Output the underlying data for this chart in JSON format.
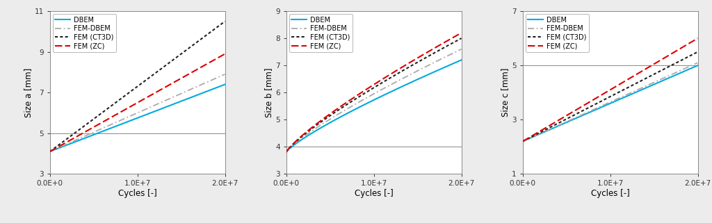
{
  "subplots": [
    {
      "ylabel": "Size a [mm]",
      "ylim": [
        3,
        11
      ],
      "yticks": [
        3,
        5,
        7,
        9,
        11
      ],
      "hline": 5.0,
      "series": {
        "DBEM": {
          "start": 4.1,
          "end": 7.4,
          "color": "#00AADD",
          "lw": 1.5,
          "ls": "solid"
        },
        "FEM-DBEM": {
          "start": 4.1,
          "end": 7.9,
          "color": "#AAAAAA",
          "lw": 1.3,
          "ls": "dashdot"
        },
        "FEM (CT3D)": {
          "start": 4.1,
          "end": 10.5,
          "color": "#222222",
          "lw": 1.5,
          "ls": "dotted"
        },
        "FEM (ZC)": {
          "start": 4.1,
          "end": 8.9,
          "color": "#DD0000",
          "lw": 1.5,
          "ls": "dashed"
        }
      },
      "curve_power": 1.0
    },
    {
      "ylabel": "Size b [mm]",
      "ylim": [
        3,
        9
      ],
      "yticks": [
        3,
        4,
        5,
        6,
        7,
        8,
        9
      ],
      "hline": 4.0,
      "series": {
        "DBEM": {
          "start": 3.8,
          "end": 7.2,
          "color": "#00AADD",
          "lw": 1.5,
          "ls": "solid"
        },
        "FEM-DBEM": {
          "start": 3.8,
          "end": 7.6,
          "color": "#AAAAAA",
          "lw": 1.3,
          "ls": "dashdot"
        },
        "FEM (CT3D)": {
          "start": 3.8,
          "end": 8.0,
          "color": "#222222",
          "lw": 1.5,
          "ls": "dotted"
        },
        "FEM (ZC)": {
          "start": 3.8,
          "end": 8.2,
          "color": "#DD0000",
          "lw": 1.5,
          "ls": "dashed"
        }
      },
      "curve_power": 0.82
    },
    {
      "ylabel": "Size c [mm]",
      "ylim": [
        1,
        7
      ],
      "yticks": [
        1,
        3,
        5,
        7
      ],
      "hline": 5.0,
      "series": {
        "DBEM": {
          "start": 2.2,
          "end": 5.0,
          "color": "#00AADD",
          "lw": 1.5,
          "ls": "solid"
        },
        "FEM-DBEM": {
          "start": 2.2,
          "end": 5.1,
          "color": "#AAAAAA",
          "lw": 1.3,
          "ls": "dashdot"
        },
        "FEM (CT3D)": {
          "start": 2.2,
          "end": 5.5,
          "color": "#222222",
          "lw": 1.5,
          "ls": "dotted"
        },
        "FEM (ZC)": {
          "start": 2.2,
          "end": 6.0,
          "color": "#DD0000",
          "lw": 1.5,
          "ls": "dashed"
        }
      },
      "curve_power": 1.0
    }
  ],
  "xlabel": "Cycles [-]",
  "xlim": [
    0,
    20000000.0
  ],
  "xticks": [
    0,
    10000000.0,
    20000000.0
  ],
  "xtick_labels": [
    "0.0E+0",
    "1.0E+7",
    "2.0E+7"
  ],
  "legend_order": [
    "DBEM",
    "FEM-DBEM",
    "FEM (CT3D)",
    "FEM (ZC)"
  ],
  "fig_bg": "#ECECEC"
}
